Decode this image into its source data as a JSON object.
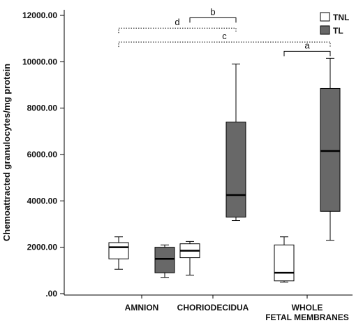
{
  "chart_data": {
    "type": "box",
    "ylabel": "Chemoattracted granulocytes/mg protein",
    "ylim": [
      0,
      12000
    ],
    "yticks": [
      0,
      2000,
      4000,
      6000,
      8000,
      10000,
      12000
    ],
    "ytick_labels": [
      ".00",
      "2000.00",
      "4000.00",
      "6000.00",
      "8000.00",
      "10000.00",
      "12000.00"
    ],
    "grid": false,
    "legend_position": "top-right",
    "categories": [
      {
        "lines": [
          "AMNION"
        ]
      },
      {
        "lines": [
          "CHORIODECIDUA"
        ]
      },
      {
        "lines": [
          "WHOLE",
          "FETAL MEMBRANES"
        ]
      }
    ],
    "series": [
      {
        "name": "TNL",
        "color": "#ffffff",
        "boxes": [
          {
            "min": 1050,
            "q1": 1500,
            "median": 2000,
            "q3": 2200,
            "max": 2450
          },
          {
            "min": 800,
            "q1": 1550,
            "median": 1850,
            "q3": 2150,
            "max": 2250
          },
          {
            "min": 500,
            "q1": 550,
            "median": 900,
            "q3": 2100,
            "max": 2450
          }
        ]
      },
      {
        "name": "TL",
        "color": "#686868",
        "boxes": [
          {
            "min": 700,
            "q1": 900,
            "median": 1500,
            "q3": 2000,
            "max": 2100
          },
          {
            "min": 3150,
            "q1": 3300,
            "median": 4250,
            "q3": 7400,
            "max": 9900
          },
          {
            "min": 2300,
            "q1": 3550,
            "median": 6150,
            "q3": 8850,
            "max": 10150
          }
        ]
      }
    ],
    "annotations": [
      {
        "label": "b",
        "from": {
          "category": 1,
          "series": 0
        },
        "to": {
          "category": 1,
          "series": 1
        },
        "y": 11900,
        "style": "solid"
      },
      {
        "label": "d",
        "from": {
          "category": 0,
          "series": 0
        },
        "to": {
          "category": 1,
          "series": 1
        },
        "y": 11450,
        "style": "dotted"
      },
      {
        "label": "c",
        "from": {
          "category": 0,
          "series": 0
        },
        "to": {
          "category": 2,
          "series": 1
        },
        "y": 10850,
        "style": "dotted"
      },
      {
        "label": "a",
        "from": {
          "category": 2,
          "series": 0
        },
        "to": {
          "category": 2,
          "series": 1
        },
        "y": 10450,
        "style": "solid"
      }
    ]
  }
}
